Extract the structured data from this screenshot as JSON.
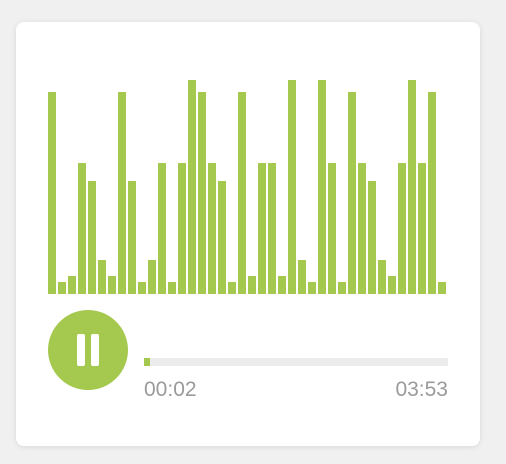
{
  "player": {
    "accent_color": "#a5c94f",
    "state_icon": "pause-icon",
    "current_time": "00:02",
    "total_time": "03:53",
    "progress_fraction": 0.007,
    "visualizer_levels": [
      1.0,
      0.06,
      0.09,
      0.65,
      0.56,
      0.17,
      0.09,
      1.0,
      0.56,
      0.06,
      0.17,
      0.65,
      0.06,
      0.65,
      1.06,
      1.0,
      0.65,
      0.56,
      0.06,
      1.0,
      0.09,
      0.65,
      0.65,
      0.09,
      1.06,
      0.17,
      0.06,
      1.06,
      0.65,
      0.06,
      1.0,
      0.65,
      0.56,
      0.17,
      0.09,
      0.65,
      1.06,
      0.65,
      1.0,
      0.06
    ]
  }
}
